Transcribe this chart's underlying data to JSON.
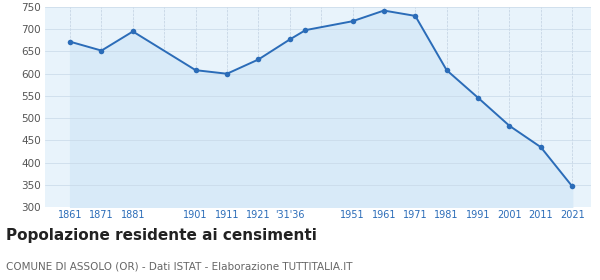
{
  "years": [
    1861,
    1871,
    1881,
    1901,
    1911,
    1921,
    1931,
    1936,
    1951,
    1961,
    1971,
    1981,
    1991,
    2001,
    2011,
    2021
  ],
  "population": [
    672,
    652,
    695,
    608,
    600,
    632,
    677,
    698,
    718,
    742,
    730,
    608,
    546,
    483,
    435,
    347
  ],
  "line_color": "#2b6cb8",
  "fill_color": "#d8eaf8",
  "marker_color": "#2b6cb8",
  "plot_bg_color": "#e8f3fb",
  "grid_color_h": "#c8d8e8",
  "grid_color_v": "#c0d0e0",
  "title": "Popolazione residente ai censimenti",
  "subtitle": "COMUNE DI ASSOLO (OR) - Dati ISTAT - Elaborazione TUTTITALIA.IT",
  "ylim": [
    300,
    750
  ],
  "yticks": [
    300,
    350,
    400,
    450,
    500,
    550,
    600,
    650,
    700,
    750
  ],
  "xtick_positions": [
    1861,
    1871,
    1881,
    1901,
    1911,
    1921,
    1931,
    1951,
    1961,
    1971,
    1981,
    1991,
    2001,
    2011,
    2021
  ],
  "xtick_labels": [
    "1861",
    "1871",
    "1881",
    "1901",
    "1911",
    "1921",
    "'31'36",
    "1951",
    "1961",
    "1971",
    "1981",
    "1991",
    "2001",
    "2011",
    "2021"
  ],
  "vline_positions": [
    1861,
    1871,
    1881,
    1891,
    1901,
    1911,
    1921,
    1931,
    1941,
    1951,
    1961,
    1971,
    1981,
    1991,
    2001,
    2011,
    2021
  ],
  "title_fontsize": 11,
  "subtitle_fontsize": 7.5,
  "tick_color": "#2b6cb8",
  "ytick_color": "#555555",
  "xlim": [
    1853,
    2027
  ]
}
